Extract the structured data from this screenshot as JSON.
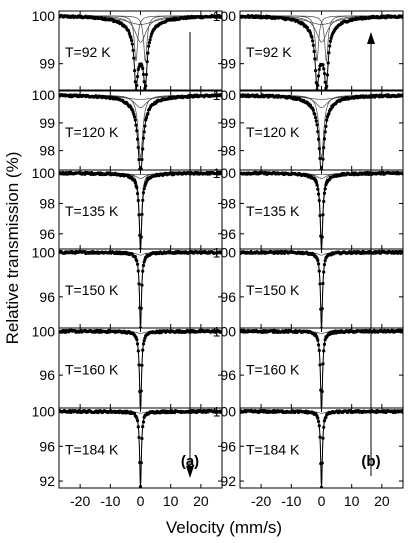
{
  "chart_data": {
    "type": "line",
    "ylabel": "Relative transmission (%)",
    "xlabel": "Velocity (mm/s)",
    "xlim": [
      -27,
      27
    ],
    "x_ticks": [
      -20,
      -10,
      0,
      10,
      20
    ],
    "x_tick_labels": [
      "-20",
      "-10",
      "0",
      "10",
      "20"
    ],
    "columns": [
      {
        "label": "(a)",
        "arrow": "down"
      },
      {
        "label": "(b)",
        "arrow": "up"
      }
    ],
    "panels": [
      {
        "temperature": "T=92 K",
        "ylim": [
          98.45,
          100.1
        ],
        "y_ticks": [
          100,
          99
        ],
        "lines": [
          {
            "pos": -1.5,
            "depth": 0.95,
            "width": 1.3
          },
          {
            "pos": 1.6,
            "depth": 0.95,
            "width": 1.3
          },
          {
            "pos": 0.05,
            "depth": 0.55,
            "width": 4.5
          },
          {
            "pos": 0,
            "depth": 0.18,
            "width": 12
          }
        ]
      },
      {
        "temperature": "T=120 K",
        "ylim": [
          97.3,
          100.15
        ],
        "y_ticks": [
          100,
          99,
          98
        ],
        "lines": [
          {
            "pos": 0,
            "depth": 2.25,
            "width": 1.8
          },
          {
            "pos": 0,
            "depth": 0.45,
            "width": 5
          },
          {
            "pos": 0,
            "depth": 0.15,
            "width": 14
          }
        ]
      },
      {
        "temperature": "T=135 K",
        "ylim": [
          95.0,
          100.2
        ],
        "y_ticks": [
          100,
          98,
          96
        ],
        "lines": [
          {
            "pos": 0,
            "depth": 4.6,
            "width": 1.0
          },
          {
            "pos": 0,
            "depth": 0.35,
            "width": 4
          },
          {
            "pos": 0,
            "depth": 0.1,
            "width": 14
          }
        ]
      },
      {
        "temperature": "T=150 K",
        "ylim": [
          93.2,
          100.3
        ],
        "y_ticks": [
          100,
          96
        ],
        "lines": [
          {
            "pos": 0,
            "depth": 6.6,
            "width": 0.8
          },
          {
            "pos": 0,
            "depth": 0.25,
            "width": 3
          }
        ]
      },
      {
        "temperature": "T=160 K",
        "ylim": [
          93.0,
          100.3
        ],
        "y_ticks": [
          100,
          96
        ],
        "lines": [
          {
            "pos": 0,
            "depth": 7.2,
            "width": 0.8
          },
          {
            "pos": 0,
            "depth": 0.2,
            "width": 3
          }
        ]
      },
      {
        "temperature": "T=184 K",
        "ylim": [
          91.2,
          100.4
        ],
        "y_ticks": [
          100,
          96,
          92
        ],
        "lines": [
          {
            "pos": 0,
            "depth": 8.5,
            "width": 0.7
          },
          {
            "pos": 0,
            "depth": 0.2,
            "width": 3
          }
        ]
      }
    ]
  }
}
